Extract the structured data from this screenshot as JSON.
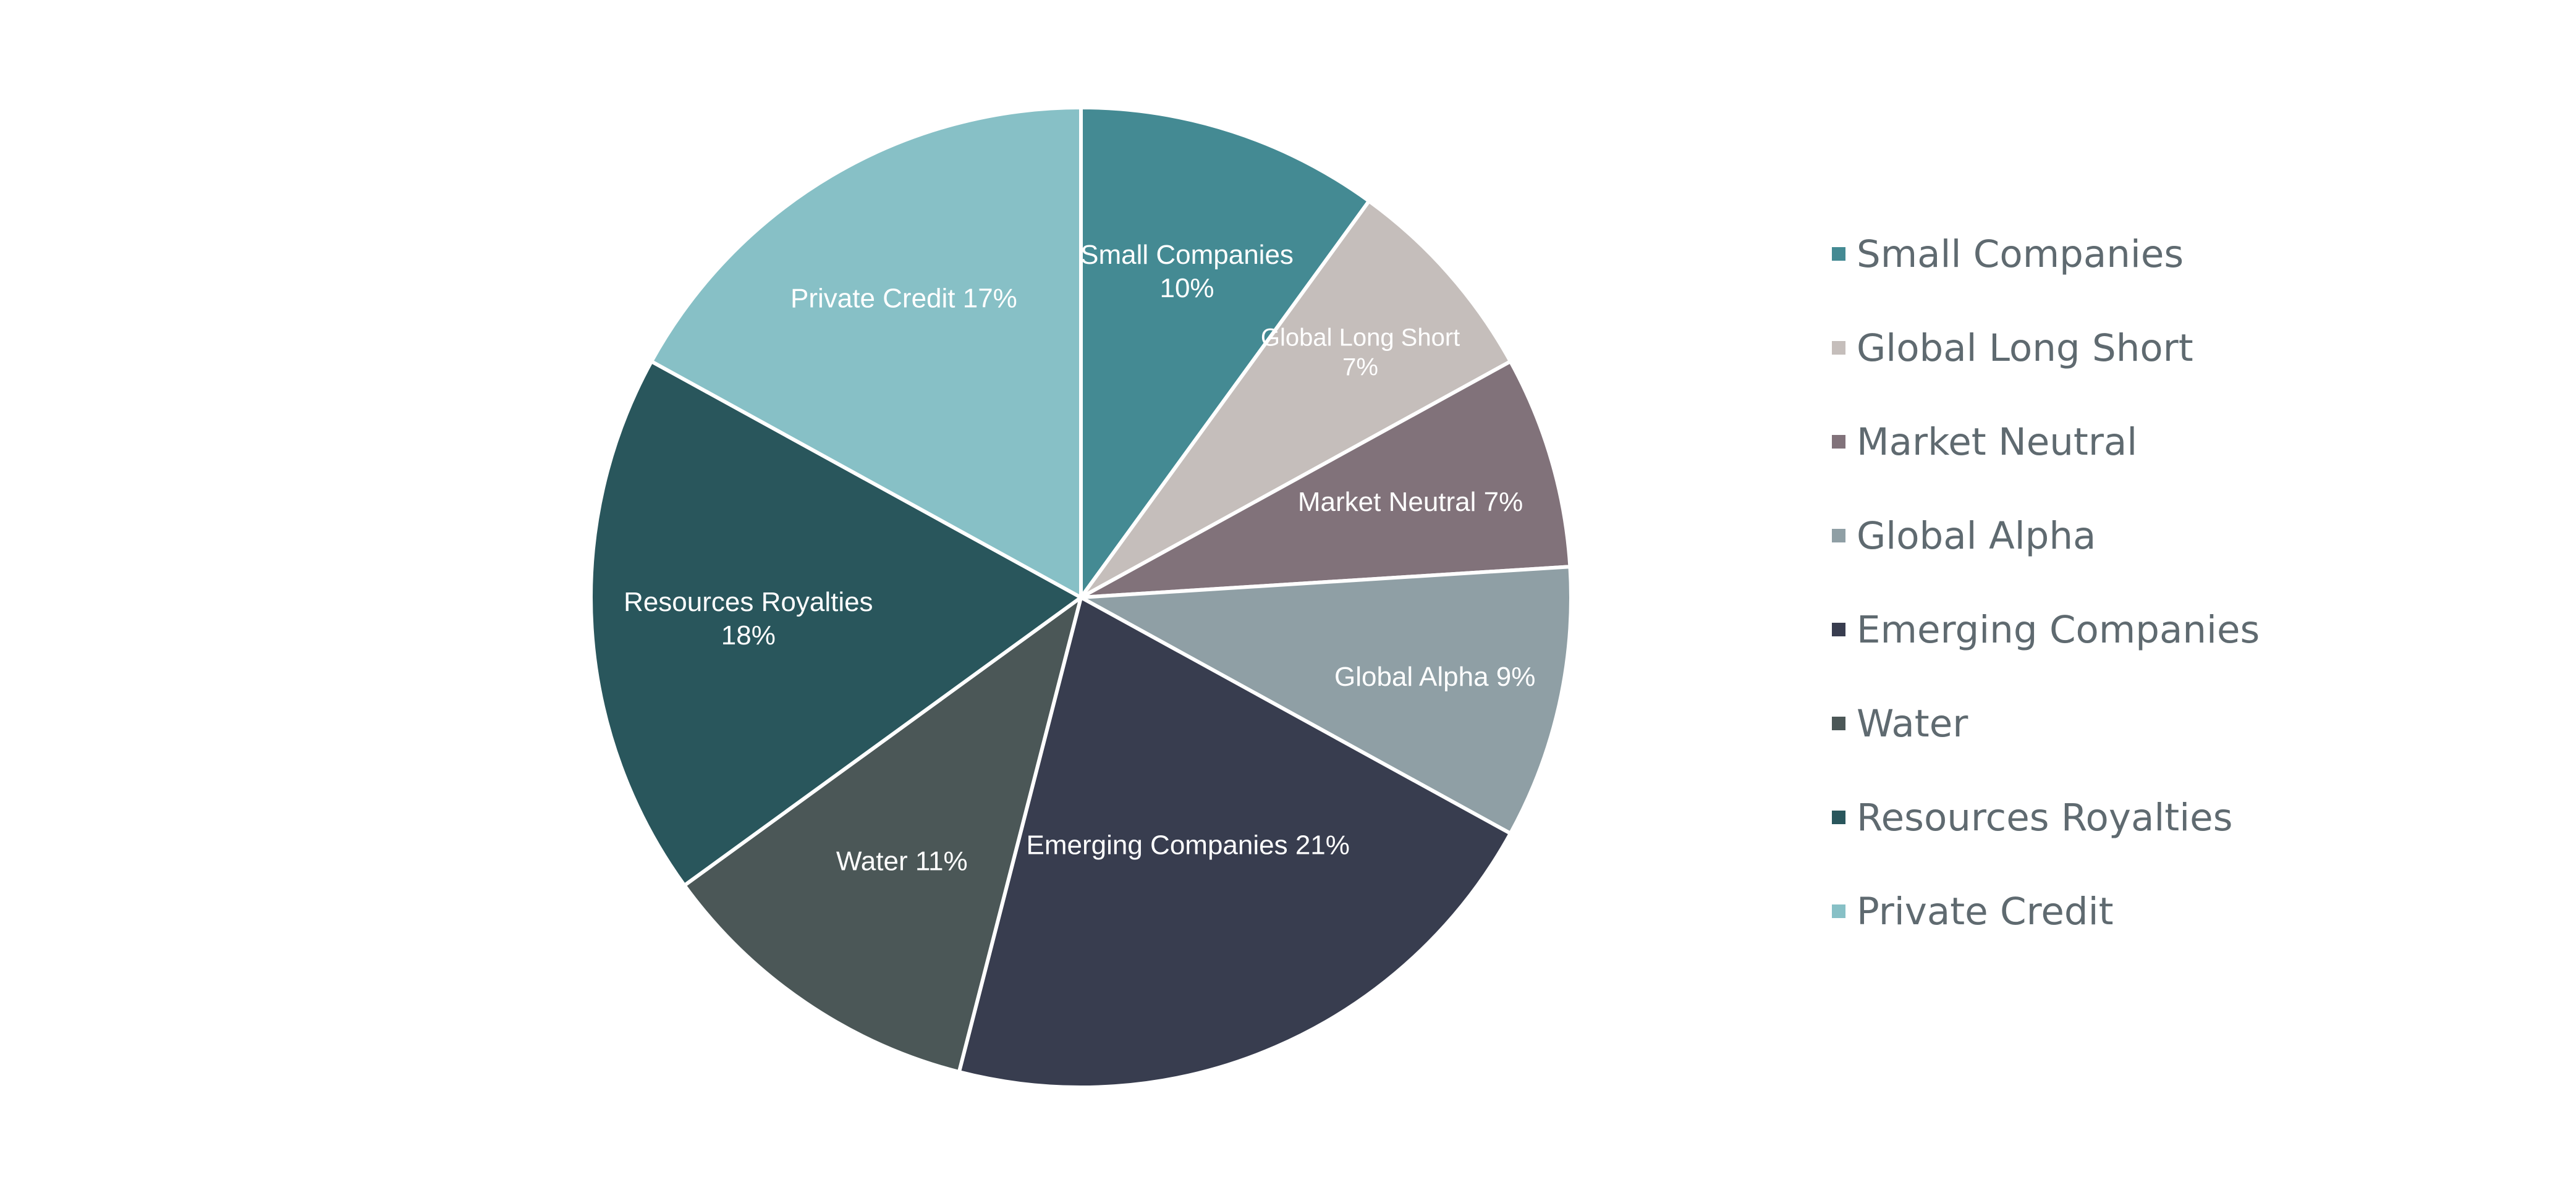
{
  "chart_data": {
    "type": "pie",
    "title": "",
    "slices": [
      {
        "name": "Small Companies",
        "value": 10,
        "label_lines": [
          "Small Companies",
          "10%"
        ],
        "color": "#448a93"
      },
      {
        "name": "Global Long Short",
        "value": 7,
        "label_lines": [
          "Global Long Short",
          "7%"
        ],
        "color": "#c5bebb"
      },
      {
        "name": "Market Neutral",
        "value": 7,
        "label_lines": [
          "Market Neutral 7%"
        ],
        "color": "#81727a"
      },
      {
        "name": "Global Alpha",
        "value": 9,
        "label_lines": [
          "Global Alpha 9%"
        ],
        "color": "#8f9fa5"
      },
      {
        "name": "Emerging Companies",
        "value": 21,
        "label_lines": [
          "Emerging Companies 21%"
        ],
        "color": "#383d4f"
      },
      {
        "name": "Water",
        "value": 11,
        "label_lines": [
          "Water 11%"
        ],
        "color": "#4b5757"
      },
      {
        "name": "Resources Royalties",
        "value": 18,
        "label_lines": [
          "Resources Royalties",
          "18%"
        ],
        "color": "#29565c"
      },
      {
        "name": "Private Credit",
        "value": 17,
        "label_lines": [
          "Private Credit  17%"
        ],
        "color": "#87c0c6"
      }
    ],
    "legend": {
      "position": "right",
      "items": [
        "Small Companies",
        "Global Long Short",
        "Market Neutral",
        "Global Alpha",
        "Emerging Companies",
        "Water",
        "Resources Royalties",
        "Private Credit"
      ]
    }
  }
}
